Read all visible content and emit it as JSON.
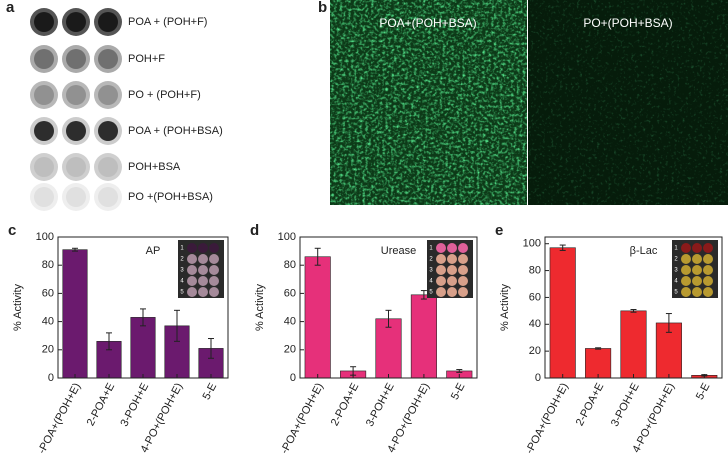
{
  "panel_a": {
    "label": "a",
    "rows": [
      "POA + (POH+F)",
      "POH+F",
      "PO + (POH+F)",
      "POA + (POH+BSA)",
      "POH+BSA",
      "PO +(POH+BSA)"
    ]
  },
  "panel_b": {
    "label": "b",
    "images": [
      "POA+(POH+BSA)",
      "PO+(POH+BSA)"
    ]
  },
  "chart_data": [
    {
      "type": "bar",
      "label": "c",
      "title": "AP",
      "ylabel": "% Activity",
      "categories": [
        "1-POA+(POH+E)",
        "2-POA+E",
        "3-POH+E",
        "4-PO+(POH+E)",
        "5-E"
      ],
      "values": [
        91,
        26,
        43,
        37,
        21
      ],
      "errors": [
        1,
        6,
        6,
        11,
        7
      ],
      "color": "#6b1a6e",
      "ylim": [
        0,
        100
      ],
      "yticks": [
        0,
        20,
        40,
        60,
        80,
        100
      ],
      "inset_rows": [
        1,
        2,
        3,
        4,
        5
      ]
    },
    {
      "type": "bar",
      "label": "d",
      "title": "Urease",
      "ylabel": "% Activity",
      "categories": [
        "1-POA+(POH+E)",
        "2-POA+E",
        "3-POH+E",
        "4-PO+(POH+E)",
        "5-E"
      ],
      "values": [
        86,
        5,
        42,
        59,
        5
      ],
      "errors": [
        6,
        3,
        6,
        3,
        1
      ],
      "color": "#e6307a",
      "ylim": [
        0,
        100
      ],
      "yticks": [
        0,
        20,
        40,
        60,
        80,
        100
      ],
      "inset_rows": [
        1,
        2,
        3,
        4,
        5
      ]
    },
    {
      "type": "bar",
      "label": "e",
      "title": "β-Lac",
      "ylabel": "% Activity",
      "categories": [
        "1-POA+(POH+E)",
        "2-POA+E",
        "3-POH+E",
        "4-PO+(POH+E)",
        "5-E"
      ],
      "values": [
        97,
        22,
        50,
        41,
        2
      ],
      "errors": [
        2,
        0.5,
        1,
        7,
        0.5
      ],
      "color": "#ee2a2f",
      "ylim": [
        0,
        105
      ],
      "yticks": [
        0,
        20,
        40,
        60,
        80,
        100
      ],
      "inset_rows": [
        1,
        2,
        3,
        4,
        5
      ]
    }
  ]
}
